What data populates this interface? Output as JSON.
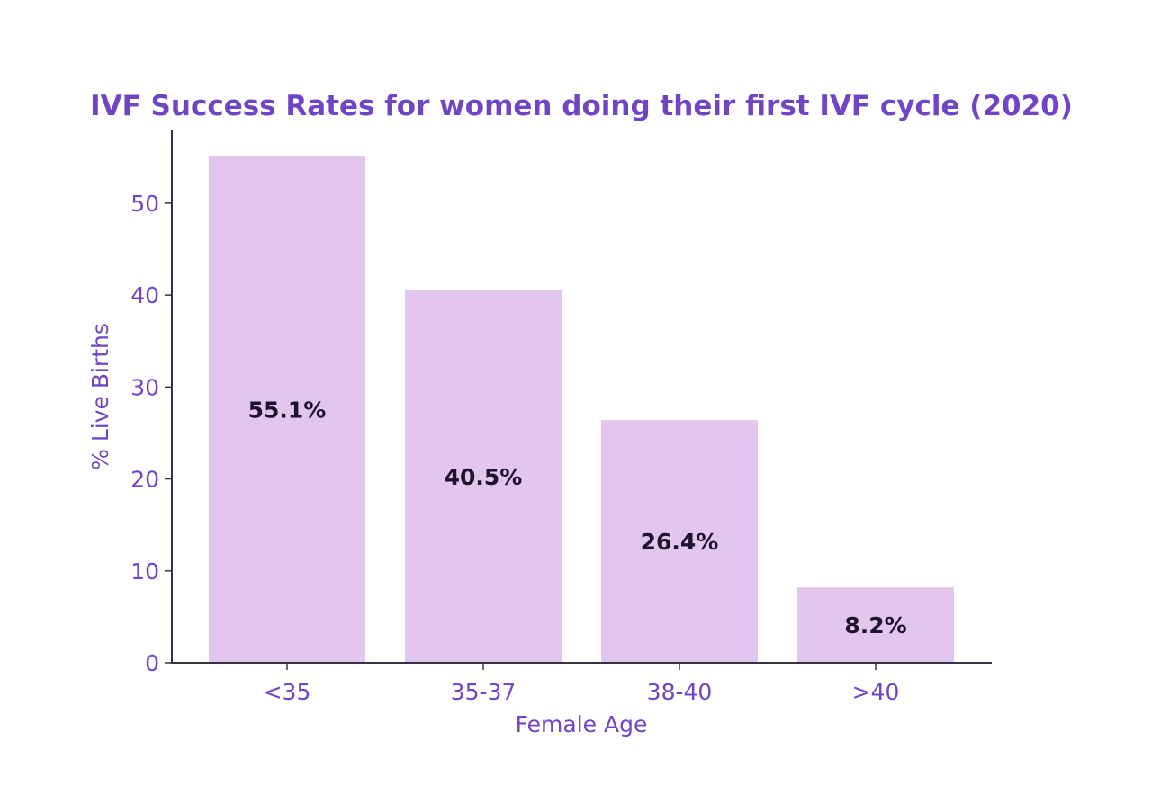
{
  "chart_data": {
    "type": "bar",
    "title": "IVF Success Rates for women doing their first IVF cycle (2020)",
    "xlabel": "Female Age",
    "ylabel": "% Live Births",
    "categories": [
      "<35",
      "35-37",
      "38-40",
      ">40"
    ],
    "values": [
      55.1,
      40.5,
      26.4,
      8.2
    ],
    "data_labels": [
      "55.1%",
      "40.5%",
      "26.4%",
      "8.2%"
    ],
    "yticks": [
      0,
      10,
      20,
      30,
      40,
      50
    ],
    "ylim": [
      0,
      58
    ],
    "grid": false,
    "legend": "none",
    "colors": {
      "bar": "#e2c6ee",
      "accent": "#6f45c6",
      "axis": "#3a3148",
      "data_label": "#1e1230"
    }
  }
}
